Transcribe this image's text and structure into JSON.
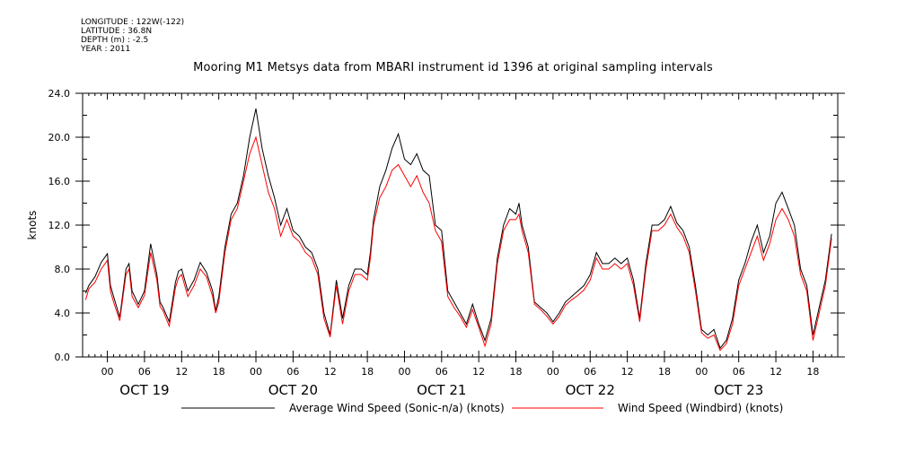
{
  "metadata": {
    "longitude": "LONGITUDE : 122W(-122)",
    "latitude": "LATITUDE : 36.8N",
    "depth": "DEPTH (m) : -2.5",
    "year": "YEAR : 2011"
  },
  "chart_data": {
    "type": "line",
    "title": "Mooring M1 Metsys data from MBARI instrument id 1396 at original sampling intervals",
    "ylabel": "knots",
    "xlabel": "",
    "ylim": [
      0.0,
      24.0
    ],
    "yticks": [
      "0.0",
      "4.0",
      "8.0",
      "12.0",
      "16.0",
      "20.0",
      "24.0"
    ],
    "xlim_hours": [
      -4,
      118
    ],
    "xtick_labels": [
      "00",
      "06",
      "12",
      "18",
      "00",
      "06",
      "12",
      "18",
      "00",
      "06",
      "12",
      "18",
      "00",
      "06",
      "12",
      "18",
      "00",
      "06",
      "12",
      "18"
    ],
    "day_labels": [
      "OCT 19",
      "OCT 20",
      "OCT 21",
      "OCT 22",
      "OCT 23"
    ],
    "x_units": "hours from 2011-10-19 00:00",
    "grid": false,
    "legend_position": "bottom",
    "series": [
      {
        "name": "Average Wind Speed (Sonic-n/a) (knots)",
        "color": "#000000",
        "x": [
          -3.5,
          -3,
          -2,
          -1,
          0,
          0.5,
          1,
          2,
          3,
          3.5,
          4,
          5,
          6,
          7,
          8,
          8.5,
          9,
          10,
          11,
          11.5,
          12,
          13,
          14,
          15,
          16,
          17,
          17.5,
          18,
          19,
          20,
          21,
          22,
          23,
          24,
          25,
          26,
          27,
          28,
          29,
          30,
          31,
          32,
          33,
          34,
          35,
          36,
          37,
          38,
          39,
          40,
          41,
          42,
          42.5,
          43,
          44,
          45,
          46,
          47,
          48,
          49,
          50,
          51,
          52,
          53,
          54,
          55,
          56,
          57,
          58,
          59,
          60,
          61,
          62,
          63,
          64,
          65,
          66,
          66.5,
          67,
          68,
          69,
          70,
          71,
          72,
          73,
          74,
          75,
          76,
          77,
          78,
          79,
          80,
          81,
          82,
          83,
          84,
          85,
          86,
          87,
          88,
          89,
          90,
          91,
          92,
          93,
          94,
          95,
          96,
          97,
          98,
          99,
          100,
          101,
          102,
          103,
          104,
          105,
          106,
          107,
          108,
          109,
          110,
          111,
          112,
          113,
          114,
          115,
          116,
          117
        ],
        "values": [
          5.8,
          6.5,
          7.3,
          8.6,
          9.4,
          6.5,
          5.5,
          3.6,
          8.0,
          8.5,
          6.0,
          4.8,
          6.0,
          10.3,
          7.5,
          5.0,
          4.5,
          3.2,
          6.8,
          7.8,
          8.0,
          6.0,
          7.0,
          8.6,
          7.7,
          6.0,
          4.2,
          5.5,
          10.0,
          13.0,
          14.0,
          16.5,
          20.0,
          22.6,
          19.0,
          16.5,
          14.5,
          12.0,
          13.5,
          11.5,
          11.0,
          10.0,
          9.5,
          8.0,
          4.0,
          2.0,
          7.0,
          3.5,
          6.5,
          8.0,
          8.0,
          7.5,
          9.5,
          12.5,
          15.5,
          17.0,
          19.0,
          20.3,
          18.0,
          17.5,
          18.5,
          17.0,
          16.5,
          12.0,
          11.5,
          6.0,
          5.0,
          4.0,
          3.0,
          4.8,
          3.0,
          1.5,
          3.5,
          9.0,
          12.0,
          13.5,
          13.0,
          14.0,
          12.0,
          10.0,
          5.0,
          4.5,
          4.0,
          3.2,
          4.0,
          5.0,
          5.5,
          6.0,
          6.5,
          7.5,
          9.5,
          8.5,
          8.5,
          9.0,
          8.5,
          9.0,
          7.0,
          3.5,
          8.5,
          12.0,
          12.0,
          12.5,
          13.7,
          12.2,
          11.5,
          10.0,
          6.5,
          2.5,
          2.0,
          2.5,
          0.8,
          1.5,
          3.5,
          7.0,
          8.5,
          10.5,
          12.0,
          9.5,
          11.0,
          14.0,
          15.0,
          13.5,
          12.0,
          8.0,
          6.5,
          2.0,
          4.5,
          7.0,
          11.2
        ]
      },
      {
        "name": "Wind Speed (Windbird) (knots)",
        "color": "#ff0000",
        "x": [
          -3.5,
          -3,
          -2,
          -1,
          0,
          0.5,
          1,
          2,
          3,
          3.5,
          4,
          5,
          6,
          7,
          8,
          8.5,
          9,
          10,
          11,
          11.5,
          12,
          13,
          14,
          15,
          16,
          17,
          17.5,
          18,
          19,
          20,
          21,
          22,
          23,
          24,
          25,
          26,
          27,
          28,
          29,
          30,
          31,
          32,
          33,
          34,
          35,
          36,
          37,
          38,
          39,
          40,
          41,
          42,
          42.5,
          43,
          44,
          45,
          46,
          47,
          48,
          49,
          50,
          51,
          52,
          53,
          54,
          55,
          56,
          57,
          58,
          59,
          60,
          61,
          62,
          63,
          64,
          65,
          66,
          66.5,
          67,
          68,
          69,
          70,
          71,
          72,
          73,
          74,
          75,
          76,
          77,
          78,
          79,
          80,
          81,
          82,
          83,
          84,
          85,
          86,
          87,
          88,
          89,
          90,
          91,
          92,
          93,
          94,
          95,
          96,
          97,
          98,
          99,
          100,
          101,
          102,
          103,
          104,
          105,
          106,
          107,
          108,
          109,
          110,
          111,
          112,
          113,
          114,
          115,
          116,
          117
        ],
        "values": [
          5.2,
          6.2,
          6.8,
          8.0,
          8.8,
          6.0,
          5.0,
          3.3,
          7.5,
          8.0,
          5.5,
          4.5,
          5.6,
          9.5,
          7.0,
          4.6,
          4.2,
          2.8,
          6.3,
          7.2,
          7.5,
          5.5,
          6.5,
          8.0,
          7.3,
          5.5,
          4.0,
          5.0,
          9.5,
          12.5,
          13.5,
          16.0,
          18.5,
          20.0,
          17.5,
          15.0,
          13.5,
          11.0,
          12.5,
          11.0,
          10.5,
          9.5,
          9.0,
          7.5,
          3.5,
          1.8,
          6.5,
          3.0,
          6.0,
          7.5,
          7.5,
          7.0,
          9.0,
          12.0,
          14.5,
          15.5,
          17.0,
          17.5,
          16.5,
          15.5,
          16.5,
          15.0,
          14.0,
          11.5,
          10.5,
          5.5,
          4.5,
          3.7,
          2.7,
          4.3,
          2.7,
          1.0,
          3.0,
          8.5,
          11.5,
          12.5,
          12.5,
          13.0,
          11.5,
          9.5,
          4.8,
          4.3,
          3.7,
          3.0,
          3.7,
          4.7,
          5.2,
          5.6,
          6.1,
          7.0,
          9.0,
          8.0,
          8.0,
          8.5,
          8.0,
          8.5,
          6.5,
          3.2,
          8.0,
          11.5,
          11.5,
          12.0,
          13.0,
          11.8,
          11.0,
          9.5,
          6.0,
          2.2,
          1.7,
          2.0,
          0.6,
          1.2,
          3.0,
          6.5,
          8.0,
          9.5,
          11.0,
          8.8,
          10.3,
          12.5,
          13.5,
          12.5,
          11.0,
          7.5,
          6.0,
          1.5,
          4.0,
          6.5,
          10.8
        ]
      }
    ]
  }
}
